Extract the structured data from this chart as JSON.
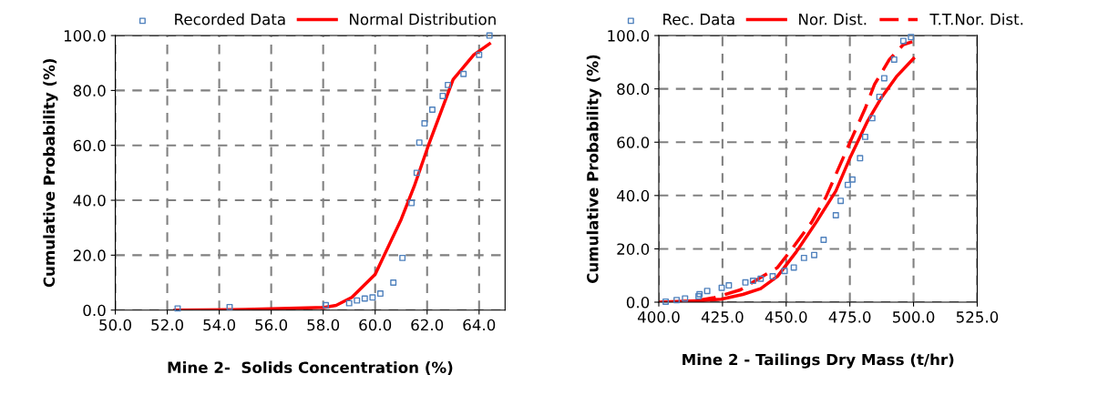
{
  "chart_data": [
    {
      "type": "line",
      "xlabel": "Mine 2-  Solids Concentration (%)",
      "ylabel": "Cumulative Probability (%)",
      "legend": "top",
      "grid": true,
      "xlim": [
        50,
        65
      ],
      "xticks": [
        {
          "value": 50,
          "label": "50.0"
        },
        {
          "value": 52,
          "label": "52.0"
        },
        {
          "value": 54,
          "label": "54.0"
        },
        {
          "value": 56,
          "label": "56.0"
        },
        {
          "value": 58,
          "label": "58.0"
        },
        {
          "value": 60,
          "label": "60.0"
        },
        {
          "value": 62,
          "label": "62.0"
        },
        {
          "value": 64,
          "label": "64.0"
        }
      ],
      "ylim": [
        0,
        100
      ],
      "yticks": [
        {
          "value": 0,
          "label": "0.0"
        },
        {
          "value": 20,
          "label": "20.0"
        },
        {
          "value": 40,
          "label": "40.0"
        },
        {
          "value": 60,
          "label": "60.0"
        },
        {
          "value": 80,
          "label": "80.0"
        },
        {
          "value": 100,
          "label": "100.0"
        }
      ],
      "series": [
        {
          "name": "Recorded Data",
          "type": "scatter",
          "marker": "square",
          "color": "#4f81bd",
          "x": [
            52.4,
            54.4,
            58.1,
            59.0,
            59.3,
            59.6,
            59.9,
            60.2,
            60.7,
            61.05,
            61.4,
            61.6,
            61.7,
            61.9,
            62.2,
            62.6,
            62.8,
            63.4,
            64.0,
            64.4
          ],
          "values": [
            0.6,
            1.1,
            1.8,
            2.5,
            3.5,
            4.2,
            4.6,
            6,
            10,
            19,
            39,
            50,
            61,
            68,
            73,
            78,
            82,
            86,
            93,
            100
          ]
        },
        {
          "name": "Normal Distribution",
          "marker": "none",
          "line_style": "solid",
          "color": "#ff0000",
          "x": [
            52.3,
            55,
            58.05,
            58.5,
            59.1,
            60.0,
            61.0,
            61.5,
            62.05,
            63.0,
            63.8,
            64.4
          ],
          "values": [
            0,
            0.2,
            1,
            1.7,
            4.6,
            13,
            33,
            45,
            60,
            84,
            93,
            97
          ]
        }
      ]
    },
    {
      "type": "line",
      "xlabel": "Mine 2 - Tailings Dry Mass (t/hr)",
      "ylabel": "Cumulative Probability (%)",
      "legend": "top",
      "grid": true,
      "xlim": [
        400,
        525
      ],
      "xticks": [
        {
          "value": 400,
          "label": "400.0"
        },
        {
          "value": 425,
          "label": "425.0"
        },
        {
          "value": 450,
          "label": "450.0"
        },
        {
          "value": 475,
          "label": "475.0"
        },
        {
          "value": 500,
          "label": "500.0"
        },
        {
          "value": 525,
          "label": "525.0"
        }
      ],
      "ylim": [
        0,
        100
      ],
      "yticks": [
        {
          "value": 0,
          "label": "0.0"
        },
        {
          "value": 20,
          "label": "20.0"
        },
        {
          "value": 40,
          "label": "40.0"
        },
        {
          "value": 60,
          "label": "60.0"
        },
        {
          "value": 80,
          "label": "80.0"
        },
        {
          "value": 100,
          "label": "100.0"
        }
      ],
      "series": [
        {
          "name": "Rec. Data",
          "type": "scatter",
          "marker": "square",
          "color": "#4f81bd",
          "x": [
            402.7,
            407,
            410.3,
            415.6,
            416,
            419,
            424.7,
            427.5,
            434,
            437,
            440,
            444.7,
            449.4,
            453,
            457,
            461,
            464.7,
            469.5,
            471.4,
            474.2,
            476,
            479,
            481,
            483.8,
            486.6,
            488.5,
            492.4,
            496,
            499
          ],
          "values": [
            0.2,
            0.8,
            1.4,
            2.2,
            3,
            4.2,
            5.4,
            6.3,
            7.4,
            8,
            8.8,
            9.7,
            11.7,
            13,
            16.6,
            17.7,
            23.4,
            32.6,
            38,
            44,
            46,
            54,
            62,
            69,
            77,
            84,
            91,
            98,
            99.4
          ]
        },
        {
          "name": "Nor. Dist.",
          "marker": "none",
          "line_style": "solid",
          "color": "#ff0000",
          "x": [
            400,
            417,
            424.5,
            433,
            440,
            446.6,
            454,
            461.8,
            469.5,
            475,
            482,
            487.6,
            493.3,
            500
          ],
          "values": [
            0,
            0.6,
            1.1,
            2.9,
            5.1,
            9.7,
            18.9,
            30,
            41.7,
            54,
            68,
            77,
            84.6,
            91.4
          ]
        },
        {
          "name": "T.T.Nor. Dist.",
          "marker": "none",
          "line_style": "dashed",
          "color": "#ff0000",
          "x": [
            415,
            421.8,
            432,
            440.8,
            446.6,
            452.3,
            460,
            465.6,
            471.4,
            476,
            481,
            484.7,
            490.5,
            496,
            499.5
          ],
          "values": [
            0.6,
            1.7,
            4.6,
            9.7,
            13,
            20,
            30,
            39.4,
            52,
            62,
            72.6,
            81.7,
            91,
            96.6,
            97.7
          ]
        }
      ]
    }
  ]
}
